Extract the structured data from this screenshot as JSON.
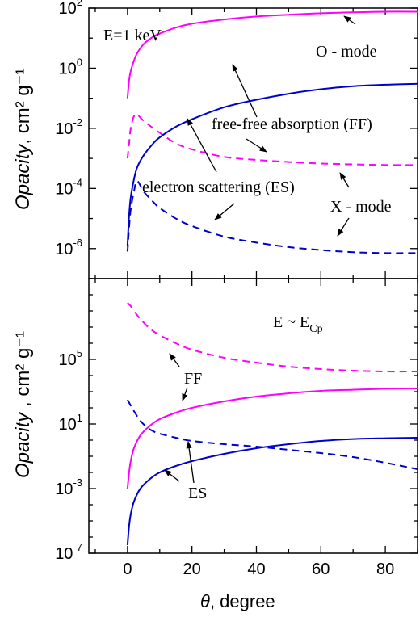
{
  "chart_data": [
    {
      "type": "line",
      "panel": "top",
      "log_y": true,
      "xlim": [
        -12,
        90
      ],
      "ylim_exp": [
        -7,
        2
      ],
      "y_tick_exps": [
        2,
        0,
        -2,
        -4,
        -6
      ],
      "ylabel": "Opacity",
      "ylabel_unit": ", cm² g⁻¹",
      "annotations": [
        {
          "key": "E",
          "text": "E=1 keV"
        },
        {
          "key": "omode",
          "text": "O - mode"
        },
        {
          "key": "ff",
          "text": "free-free absorption (FF)"
        },
        {
          "key": "es",
          "text": "electron scattering (ES)"
        },
        {
          "key": "xmode",
          "text": "X - mode"
        }
      ],
      "colors": {
        "o_mode": "#ff00ff",
        "x_mode": "#0000cc"
      },
      "series": [
        {
          "mode": "O",
          "process": "FF",
          "style": "solid",
          "x": [
            0,
            0.5,
            1,
            2,
            3,
            5,
            8,
            10,
            15,
            20,
            30,
            40,
            50,
            60,
            70,
            80,
            90
          ],
          "log10_y": [
            -1.0,
            -0.4,
            -0.1,
            0.25,
            0.5,
            0.8,
            1.05,
            1.15,
            1.35,
            1.48,
            1.62,
            1.72,
            1.78,
            1.83,
            1.86,
            1.88,
            1.88
          ]
        },
        {
          "mode": "O",
          "process": "ES",
          "style": "dashed",
          "x": [
            0,
            0.5,
            1,
            2,
            3,
            5,
            8,
            10,
            15,
            20,
            30,
            40,
            50,
            60,
            70,
            80,
            90
          ],
          "log10_y": [
            -3.0,
            -2.5,
            -2.0,
            -1.6,
            -1.55,
            -1.75,
            -2.0,
            -2.15,
            -2.5,
            -2.7,
            -2.95,
            -3.05,
            -3.12,
            -3.17,
            -3.2,
            -3.22,
            -3.22
          ]
        },
        {
          "mode": "X",
          "process": "FF",
          "style": "solid",
          "x": [
            0,
            0.5,
            1,
            2,
            3,
            5,
            8,
            10,
            15,
            20,
            30,
            40,
            50,
            60,
            70,
            80,
            90
          ],
          "log10_y": [
            -5.9,
            -4.9,
            -4.3,
            -3.7,
            -3.3,
            -2.9,
            -2.5,
            -2.3,
            -1.95,
            -1.7,
            -1.3,
            -1.05,
            -0.85,
            -0.7,
            -0.6,
            -0.55,
            -0.52
          ]
        },
        {
          "mode": "X",
          "process": "ES",
          "style": "dashed",
          "x": [
            0,
            0.5,
            1,
            2,
            3,
            5,
            8,
            10,
            15,
            20,
            30,
            40,
            50,
            60,
            70,
            80,
            90
          ],
          "log10_y": [
            -6.1,
            -5.3,
            -4.7,
            -4.1,
            -3.75,
            -4.1,
            -4.45,
            -4.65,
            -5.0,
            -5.25,
            -5.6,
            -5.8,
            -5.95,
            -6.05,
            -6.12,
            -6.15,
            -6.15
          ]
        }
      ]
    },
    {
      "type": "line",
      "panel": "bottom",
      "log_y": true,
      "xlim": [
        -12,
        90
      ],
      "ylim_exp": [
        -7,
        10
      ],
      "y_tick_exps": [
        5,
        1,
        -3,
        -7
      ],
      "x_ticks": [
        0,
        20,
        40,
        60,
        80
      ],
      "ylabel": "Opacity",
      "ylabel_unit": " , cm² g⁻¹",
      "xlabel_symbol": "θ",
      "xlabel_unit": ",  degree",
      "annotations": [
        {
          "key": "E",
          "text_main": "E ~ E",
          "text_sub": "Cp"
        },
        {
          "key": "ff",
          "text": "FF"
        },
        {
          "key": "es",
          "text": "ES"
        }
      ],
      "colors": {
        "o_mode": "#ff00ff",
        "x_mode": "#0000cc"
      },
      "series": [
        {
          "mode": "O",
          "process": "FF",
          "style": "dashed",
          "x": [
            0,
            1,
            2,
            4,
            7,
            10,
            15,
            20,
            30,
            40,
            50,
            60,
            70,
            80,
            90
          ],
          "log10_y": [
            8.5,
            8.3,
            8.0,
            7.5,
            6.9,
            6.5,
            6.0,
            5.6,
            5.1,
            4.8,
            4.55,
            4.4,
            4.3,
            4.25,
            4.25
          ]
        },
        {
          "mode": "O",
          "process": "ES",
          "style": "solid",
          "x": [
            0,
            0.5,
            1,
            2,
            4,
            7,
            10,
            15,
            20,
            30,
            40,
            50,
            60,
            70,
            80,
            90
          ],
          "log10_y": [
            -3.0,
            -2.0,
            -1.3,
            -0.5,
            0.3,
            0.9,
            1.3,
            1.7,
            2.0,
            2.4,
            2.7,
            2.9,
            3.05,
            3.12,
            3.18,
            3.2
          ]
        },
        {
          "mode": "X",
          "process": "FF",
          "style": "dashed",
          "x": [
            0,
            2,
            4,
            6,
            8,
            10,
            15,
            20,
            30,
            40,
            50,
            60,
            70,
            80,
            90
          ],
          "log10_y": [
            2.5,
            1.8,
            1.2,
            0.8,
            0.55,
            0.4,
            0.15,
            -0.05,
            -0.25,
            -0.4,
            -0.6,
            -0.8,
            -1.05,
            -1.4,
            -1.8
          ]
        },
        {
          "mode": "X",
          "process": "ES",
          "style": "solid",
          "x": [
            0,
            0.5,
            1,
            2,
            4,
            7,
            10,
            15,
            20,
            30,
            40,
            50,
            60,
            70,
            80,
            90
          ],
          "log10_y": [
            -6.5,
            -5.3,
            -4.6,
            -3.8,
            -3.0,
            -2.4,
            -2.0,
            -1.6,
            -1.3,
            -0.85,
            -0.5,
            -0.25,
            -0.05,
            0.07,
            0.12,
            0.15
          ]
        }
      ]
    }
  ]
}
